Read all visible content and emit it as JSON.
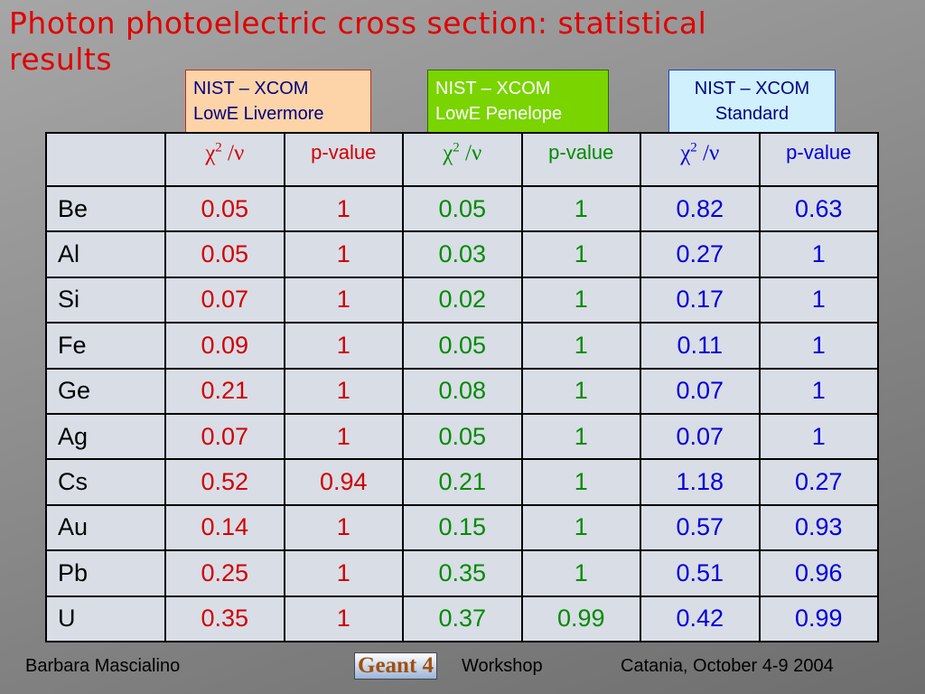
{
  "header": {
    "title_lines": [
      "Photon photoelectric cross section: statistical",
      "results"
    ]
  },
  "boxes": [
    {
      "lines": [
        "NIST – XCOM",
        "LowE Livermore"
      ]
    },
    {
      "lines": [
        "NIST – XCOM",
        "LowE Penelope"
      ]
    },
    {
      "lines": [
        "NIST – XCOM",
        "Standard"
      ]
    }
  ],
  "table": {
    "header": [
      {
        "base": "χ",
        "sup": "2",
        "tail": " /ν"
      },
      "p-value",
      {
        "base": "χ",
        "sup": "2",
        "tail": " /ν"
      },
      "p-value",
      {
        "base": "χ",
        "sup": "2",
        "tail": " /ν"
      },
      "p-value"
    ],
    "rows": [
      [
        "Be",
        "0.05",
        "1",
        "0.05",
        "1",
        "0.82",
        "0.63"
      ],
      [
        "Al",
        "0.05",
        "1",
        "0.03",
        "1",
        "0.27",
        "1"
      ],
      [
        "Si",
        "0.07",
        "1",
        "0.02",
        "1",
        "0.17",
        "1"
      ],
      [
        "Fe",
        "0.09",
        "1",
        "0.05",
        "1",
        "0.11",
        "1"
      ],
      [
        "Ge",
        "0.21",
        "1",
        "0.08",
        "1",
        "0.07",
        "1"
      ],
      [
        "Ag",
        "0.07",
        "1",
        "0.05",
        "1",
        "0.07",
        "1"
      ],
      [
        "Cs",
        "0.52",
        "0.94",
        "0.21",
        "1",
        "1.18",
        "0.27"
      ],
      [
        "Au",
        "0.14",
        "1",
        "0.15",
        "1",
        "0.57",
        "0.93"
      ],
      [
        "Pb",
        "0.25",
        "1",
        "0.35",
        "1",
        "0.51",
        "0.96"
      ],
      [
        "U",
        "0.35",
        "1",
        "0.37",
        "0.99",
        "0.42",
        "0.99"
      ]
    ]
  },
  "footer": {
    "author": "Barbara Mascialino",
    "logo": "Geant 4",
    "event": "Workshop",
    "place": "Catania, October 4-9 2004"
  }
}
